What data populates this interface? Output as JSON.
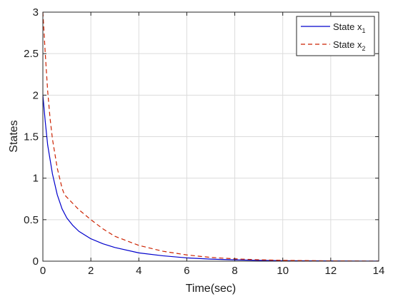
{
  "chart_data": {
    "type": "line",
    "xlabel": "Time(sec)",
    "ylabel": "States",
    "xlim": [
      0,
      14
    ],
    "ylim": [
      0,
      3
    ],
    "xticks": [
      0,
      2,
      4,
      6,
      8,
      10,
      12,
      14
    ],
    "yticks": [
      0,
      0.5,
      1,
      1.5,
      2,
      2.5,
      3
    ],
    "xtick_labels": [
      "0",
      "2",
      "4",
      "6",
      "8",
      "10",
      "12",
      "14"
    ],
    "ytick_labels": [
      "0",
      "0.5",
      "1",
      "1.5",
      "2",
      "2.5",
      "3"
    ],
    "grid": true,
    "legend_position": "top-right",
    "series": [
      {
        "name": "State x1",
        "legend_main": "State x",
        "legend_sub": "1",
        "color": "#0000cc",
        "style": "solid",
        "x": [
          0,
          0.1,
          0.2,
          0.4,
          0.6,
          0.8,
          1.0,
          1.25,
          1.5,
          2.0,
          2.5,
          3.0,
          4.0,
          5.0,
          6.0,
          7.0,
          8.0,
          9.0,
          10.0,
          12.0,
          14.0
        ],
        "y": [
          2.0,
          1.68,
          1.4,
          1.05,
          0.8,
          0.63,
          0.52,
          0.43,
          0.36,
          0.27,
          0.21,
          0.165,
          0.1,
          0.065,
          0.04,
          0.025,
          0.016,
          0.01,
          0.006,
          0.003,
          0.001
        ]
      },
      {
        "name": "State x2",
        "legend_main": "State x",
        "legend_sub": "2",
        "color": "#cc2200",
        "style": "dashed",
        "x": [
          0,
          0.05,
          0.1,
          0.2,
          0.3,
          0.4,
          0.6,
          0.8,
          0.9,
          1.0,
          1.5,
          2.0,
          2.5,
          3.0,
          4.0,
          5.0,
          6.0,
          7.0,
          8.0,
          9.0,
          10.0,
          12.0,
          14.0
        ],
        "y": [
          3.0,
          2.75,
          2.5,
          2.05,
          1.72,
          1.47,
          1.12,
          0.88,
          0.8,
          0.77,
          0.62,
          0.5,
          0.39,
          0.3,
          0.19,
          0.12,
          0.075,
          0.045,
          0.028,
          0.017,
          0.01,
          0.004,
          0.001
        ]
      }
    ]
  }
}
